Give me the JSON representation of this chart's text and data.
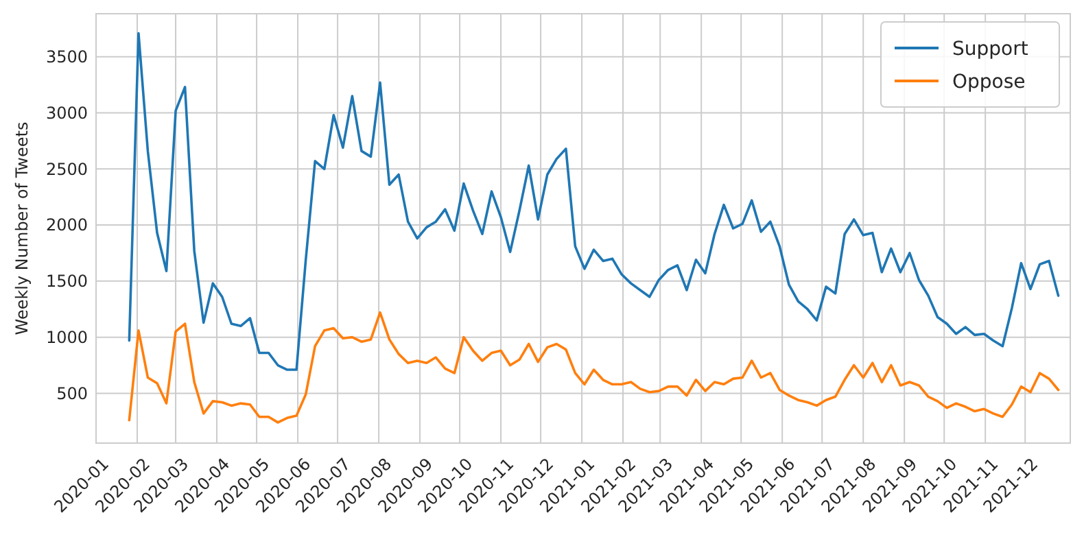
{
  "chart_data": {
    "type": "line",
    "ylabel": "Weekly Number of Tweets",
    "x": [
      "2020-01-26",
      "2020-02-02",
      "2020-02-09",
      "2020-02-16",
      "2020-02-23",
      "2020-03-01",
      "2020-03-08",
      "2020-03-15",
      "2020-03-22",
      "2020-03-29",
      "2020-04-05",
      "2020-04-12",
      "2020-04-19",
      "2020-04-26",
      "2020-05-03",
      "2020-05-10",
      "2020-05-17",
      "2020-05-24",
      "2020-05-31",
      "2020-06-07",
      "2020-06-14",
      "2020-06-21",
      "2020-06-28",
      "2020-07-05",
      "2020-07-12",
      "2020-07-19",
      "2020-07-26",
      "2020-08-02",
      "2020-08-09",
      "2020-08-16",
      "2020-08-23",
      "2020-08-30",
      "2020-09-06",
      "2020-09-13",
      "2020-09-20",
      "2020-09-27",
      "2020-10-04",
      "2020-10-11",
      "2020-10-18",
      "2020-10-25",
      "2020-11-01",
      "2020-11-08",
      "2020-11-15",
      "2020-11-22",
      "2020-11-29",
      "2020-12-06",
      "2020-12-13",
      "2020-12-20",
      "2020-12-27",
      "2021-01-03",
      "2021-01-10",
      "2021-01-17",
      "2021-01-24",
      "2021-01-31",
      "2021-02-07",
      "2021-02-14",
      "2021-02-21",
      "2021-02-28",
      "2021-03-07",
      "2021-03-14",
      "2021-03-21",
      "2021-03-28",
      "2021-04-04",
      "2021-04-11",
      "2021-04-18",
      "2021-04-25",
      "2021-05-02",
      "2021-05-09",
      "2021-05-16",
      "2021-05-23",
      "2021-05-30",
      "2021-06-06",
      "2021-06-13",
      "2021-06-20",
      "2021-06-27",
      "2021-07-04",
      "2021-07-11",
      "2021-07-18",
      "2021-07-25",
      "2021-08-01",
      "2021-08-08",
      "2021-08-15",
      "2021-08-22",
      "2021-08-29",
      "2021-09-05",
      "2021-09-12",
      "2021-09-19",
      "2021-09-26",
      "2021-10-03",
      "2021-10-10",
      "2021-10-17",
      "2021-10-24",
      "2021-10-31",
      "2021-11-07",
      "2021-11-14",
      "2021-11-21",
      "2021-11-28",
      "2021-12-05",
      "2021-12-12",
      "2021-12-19",
      "2021-12-26"
    ],
    "series": [
      {
        "name": "Support",
        "color": "#1f77b4",
        "values": [
          970,
          3710,
          2660,
          1930,
          1590,
          3020,
          3230,
          1770,
          1130,
          1480,
          1360,
          1120,
          1100,
          1170,
          860,
          860,
          750,
          710,
          710,
          1690,
          2570,
          2500,
          2980,
          2690,
          3150,
          2660,
          2610,
          3270,
          2360,
          2450,
          2030,
          1880,
          1980,
          2030,
          2140,
          1950,
          2370,
          2130,
          1920,
          2300,
          2070,
          1760,
          2130,
          2530,
          2050,
          2450,
          2590,
          2680,
          1810,
          1610,
          1780,
          1680,
          1700,
          1560,
          1480,
          1420,
          1360,
          1510,
          1600,
          1640,
          1420,
          1690,
          1570,
          1920,
          2180,
          1970,
          2010,
          2220,
          1940,
          2030,
          1810,
          1470,
          1320,
          1250,
          1150,
          1450,
          1390,
          1920,
          2050,
          1910,
          1930,
          1580,
          1790,
          1580,
          1750,
          1510,
          1370,
          1180,
          1120,
          1030,
          1090,
          1020,
          1030,
          970,
          920,
          1260,
          1660,
          1430,
          1650,
          1680,
          1370
        ]
      },
      {
        "name": "Oppose",
        "color": "#ff7f0e",
        "values": [
          260,
          1060,
          640,
          590,
          410,
          1050,
          1120,
          600,
          320,
          430,
          420,
          390,
          410,
          400,
          290,
          290,
          240,
          280,
          300,
          490,
          920,
          1060,
          1080,
          990,
          1000,
          960,
          980,
          1220,
          980,
          850,
          770,
          790,
          770,
          820,
          720,
          680,
          1000,
          880,
          790,
          860,
          880,
          750,
          800,
          940,
          780,
          910,
          940,
          890,
          680,
          580,
          710,
          620,
          580,
          580,
          600,
          540,
          510,
          520,
          560,
          560,
          480,
          620,
          520,
          600,
          580,
          630,
          640,
          790,
          640,
          680,
          530,
          480,
          440,
          420,
          390,
          440,
          470,
          620,
          750,
          640,
          770,
          600,
          750,
          570,
          600,
          570,
          470,
          430,
          370,
          410,
          380,
          340,
          360,
          320,
          290,
          400,
          560,
          510,
          680,
          630,
          530
        ]
      }
    ],
    "xlim": [
      "2020-01-01",
      "2022-01-04"
    ],
    "xticks": [
      {
        "value": "2020-01-01",
        "label": "2020-01"
      },
      {
        "value": "2020-02-01",
        "label": "2020-02"
      },
      {
        "value": "2020-03-01",
        "label": "2020-03"
      },
      {
        "value": "2020-04-01",
        "label": "2020-04"
      },
      {
        "value": "2020-05-01",
        "label": "2020-05"
      },
      {
        "value": "2020-06-01",
        "label": "2020-06"
      },
      {
        "value": "2020-07-01",
        "label": "2020-07"
      },
      {
        "value": "2020-08-01",
        "label": "2020-08"
      },
      {
        "value": "2020-09-01",
        "label": "2020-09"
      },
      {
        "value": "2020-10-01",
        "label": "2020-10"
      },
      {
        "value": "2020-11-01",
        "label": "2020-11"
      },
      {
        "value": "2020-12-01",
        "label": "2020-12"
      },
      {
        "value": "2021-01-01",
        "label": "2021-01"
      },
      {
        "value": "2021-02-01",
        "label": "2021-02"
      },
      {
        "value": "2021-03-01",
        "label": "2021-03"
      },
      {
        "value": "2021-04-01",
        "label": "2021-04"
      },
      {
        "value": "2021-05-01",
        "label": "2021-05"
      },
      {
        "value": "2021-06-01",
        "label": "2021-06"
      },
      {
        "value": "2021-07-01",
        "label": "2021-07"
      },
      {
        "value": "2021-08-01",
        "label": "2021-08"
      },
      {
        "value": "2021-09-01",
        "label": "2021-09"
      },
      {
        "value": "2021-10-01",
        "label": "2021-10"
      },
      {
        "value": "2021-11-01",
        "label": "2021-11"
      },
      {
        "value": "2021-12-01",
        "label": "2021-12"
      }
    ],
    "ylim": [
      56,
      3884
    ],
    "yticks": [
      500,
      1000,
      1500,
      2000,
      2500,
      3000,
      3500
    ],
    "grid": true,
    "legend": "top right"
  }
}
